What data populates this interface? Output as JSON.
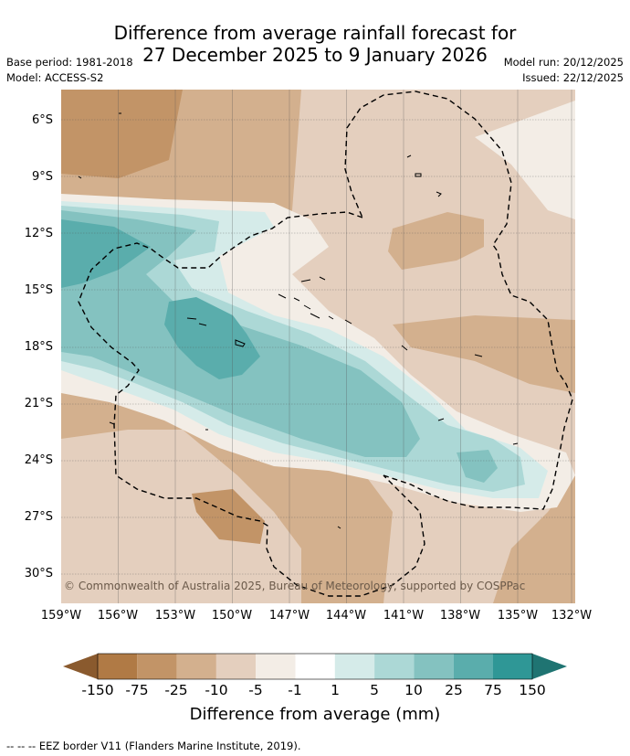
{
  "title": {
    "line1": "Difference from average rainfall forecast for",
    "line2": "27 December 2025 to 9 January 2026"
  },
  "meta": {
    "base_period": "Base period: 1981-2018",
    "model": "Model: ACCESS-S2",
    "model_run": "Model run: 20/12/2025",
    "issued": "Issued: 22/12/2025"
  },
  "axes": {
    "latitude_labels": [
      "6°S",
      "9°S",
      "12°S",
      "15°S",
      "18°S",
      "21°S",
      "24°S",
      "27°S",
      "30°S"
    ],
    "longitude_labels": [
      "159°W",
      "156°W",
      "153°W",
      "150°W",
      "147°W",
      "144°W",
      "141°W",
      "138°W",
      "135°W",
      "132°W"
    ]
  },
  "copyright": "© Commonwealth of Australia 2025, Bureau of Meteorology, supported by COSPPac",
  "colorbar": {
    "title": "Difference from average (mm)",
    "tick_labels": [
      "-150",
      "-75",
      "-25",
      "-10",
      "-5",
      "-1",
      "1",
      "5",
      "10",
      "25",
      "75",
      "150"
    ],
    "colors": [
      "#8a5a2e",
      "#b07a45",
      "#c29467",
      "#d3b08e",
      "#e4cfbe",
      "#f3ede6",
      "#ffffff",
      "#d5ebe9",
      "#acd8d6",
      "#84c2c0",
      "#5aadac",
      "#2f9796",
      "#1f7472"
    ]
  },
  "legend_note": "-- -- -- EEZ border V11 (Flanders Marine Institute, 2019)."
}
